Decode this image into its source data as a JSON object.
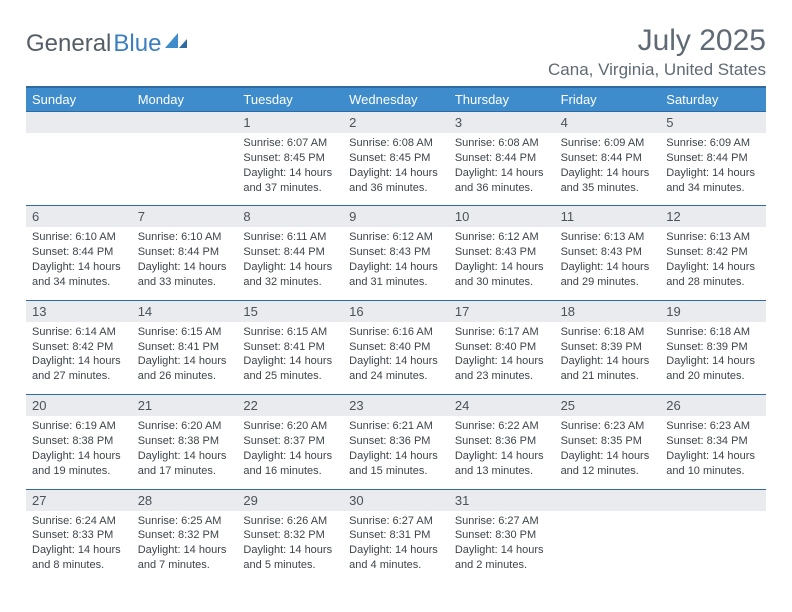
{
  "brand": {
    "part1": "General",
    "part2": "Blue"
  },
  "title": {
    "month": "July 2025",
    "location": "Cana, Virginia, United States"
  },
  "colors": {
    "header_bg": "#3e8ccc",
    "header_text": "#ffffff",
    "rule": "#2f6aa0",
    "daynum_bg": "#e9ebee",
    "text": "#3d444b"
  },
  "dow": [
    "Sunday",
    "Monday",
    "Tuesday",
    "Wednesday",
    "Thursday",
    "Friday",
    "Saturday"
  ],
  "weeks": [
    [
      {
        "n": "",
        "sr": "",
        "ss": "",
        "dl": ""
      },
      {
        "n": "",
        "sr": "",
        "ss": "",
        "dl": ""
      },
      {
        "n": "1",
        "sr": "Sunrise: 6:07 AM",
        "ss": "Sunset: 8:45 PM",
        "dl": "Daylight: 14 hours and 37 minutes."
      },
      {
        "n": "2",
        "sr": "Sunrise: 6:08 AM",
        "ss": "Sunset: 8:45 PM",
        "dl": "Daylight: 14 hours and 36 minutes."
      },
      {
        "n": "3",
        "sr": "Sunrise: 6:08 AM",
        "ss": "Sunset: 8:44 PM",
        "dl": "Daylight: 14 hours and 36 minutes."
      },
      {
        "n": "4",
        "sr": "Sunrise: 6:09 AM",
        "ss": "Sunset: 8:44 PM",
        "dl": "Daylight: 14 hours and 35 minutes."
      },
      {
        "n": "5",
        "sr": "Sunrise: 6:09 AM",
        "ss": "Sunset: 8:44 PM",
        "dl": "Daylight: 14 hours and 34 minutes."
      }
    ],
    [
      {
        "n": "6",
        "sr": "Sunrise: 6:10 AM",
        "ss": "Sunset: 8:44 PM",
        "dl": "Daylight: 14 hours and 34 minutes."
      },
      {
        "n": "7",
        "sr": "Sunrise: 6:10 AM",
        "ss": "Sunset: 8:44 PM",
        "dl": "Daylight: 14 hours and 33 minutes."
      },
      {
        "n": "8",
        "sr": "Sunrise: 6:11 AM",
        "ss": "Sunset: 8:44 PM",
        "dl": "Daylight: 14 hours and 32 minutes."
      },
      {
        "n": "9",
        "sr": "Sunrise: 6:12 AM",
        "ss": "Sunset: 8:43 PM",
        "dl": "Daylight: 14 hours and 31 minutes."
      },
      {
        "n": "10",
        "sr": "Sunrise: 6:12 AM",
        "ss": "Sunset: 8:43 PM",
        "dl": "Daylight: 14 hours and 30 minutes."
      },
      {
        "n": "11",
        "sr": "Sunrise: 6:13 AM",
        "ss": "Sunset: 8:43 PM",
        "dl": "Daylight: 14 hours and 29 minutes."
      },
      {
        "n": "12",
        "sr": "Sunrise: 6:13 AM",
        "ss": "Sunset: 8:42 PM",
        "dl": "Daylight: 14 hours and 28 minutes."
      }
    ],
    [
      {
        "n": "13",
        "sr": "Sunrise: 6:14 AM",
        "ss": "Sunset: 8:42 PM",
        "dl": "Daylight: 14 hours and 27 minutes."
      },
      {
        "n": "14",
        "sr": "Sunrise: 6:15 AM",
        "ss": "Sunset: 8:41 PM",
        "dl": "Daylight: 14 hours and 26 minutes."
      },
      {
        "n": "15",
        "sr": "Sunrise: 6:15 AM",
        "ss": "Sunset: 8:41 PM",
        "dl": "Daylight: 14 hours and 25 minutes."
      },
      {
        "n": "16",
        "sr": "Sunrise: 6:16 AM",
        "ss": "Sunset: 8:40 PM",
        "dl": "Daylight: 14 hours and 24 minutes."
      },
      {
        "n": "17",
        "sr": "Sunrise: 6:17 AM",
        "ss": "Sunset: 8:40 PM",
        "dl": "Daylight: 14 hours and 23 minutes."
      },
      {
        "n": "18",
        "sr": "Sunrise: 6:18 AM",
        "ss": "Sunset: 8:39 PM",
        "dl": "Daylight: 14 hours and 21 minutes."
      },
      {
        "n": "19",
        "sr": "Sunrise: 6:18 AM",
        "ss": "Sunset: 8:39 PM",
        "dl": "Daylight: 14 hours and 20 minutes."
      }
    ],
    [
      {
        "n": "20",
        "sr": "Sunrise: 6:19 AM",
        "ss": "Sunset: 8:38 PM",
        "dl": "Daylight: 14 hours and 19 minutes."
      },
      {
        "n": "21",
        "sr": "Sunrise: 6:20 AM",
        "ss": "Sunset: 8:38 PM",
        "dl": "Daylight: 14 hours and 17 minutes."
      },
      {
        "n": "22",
        "sr": "Sunrise: 6:20 AM",
        "ss": "Sunset: 8:37 PM",
        "dl": "Daylight: 14 hours and 16 minutes."
      },
      {
        "n": "23",
        "sr": "Sunrise: 6:21 AM",
        "ss": "Sunset: 8:36 PM",
        "dl": "Daylight: 14 hours and 15 minutes."
      },
      {
        "n": "24",
        "sr": "Sunrise: 6:22 AM",
        "ss": "Sunset: 8:36 PM",
        "dl": "Daylight: 14 hours and 13 minutes."
      },
      {
        "n": "25",
        "sr": "Sunrise: 6:23 AM",
        "ss": "Sunset: 8:35 PM",
        "dl": "Daylight: 14 hours and 12 minutes."
      },
      {
        "n": "26",
        "sr": "Sunrise: 6:23 AM",
        "ss": "Sunset: 8:34 PM",
        "dl": "Daylight: 14 hours and 10 minutes."
      }
    ],
    [
      {
        "n": "27",
        "sr": "Sunrise: 6:24 AM",
        "ss": "Sunset: 8:33 PM",
        "dl": "Daylight: 14 hours and 8 minutes."
      },
      {
        "n": "28",
        "sr": "Sunrise: 6:25 AM",
        "ss": "Sunset: 8:32 PM",
        "dl": "Daylight: 14 hours and 7 minutes."
      },
      {
        "n": "29",
        "sr": "Sunrise: 6:26 AM",
        "ss": "Sunset: 8:32 PM",
        "dl": "Daylight: 14 hours and 5 minutes."
      },
      {
        "n": "30",
        "sr": "Sunrise: 6:27 AM",
        "ss": "Sunset: 8:31 PM",
        "dl": "Daylight: 14 hours and 4 minutes."
      },
      {
        "n": "31",
        "sr": "Sunrise: 6:27 AM",
        "ss": "Sunset: 8:30 PM",
        "dl": "Daylight: 14 hours and 2 minutes."
      },
      {
        "n": "",
        "sr": "",
        "ss": "",
        "dl": ""
      },
      {
        "n": "",
        "sr": "",
        "ss": "",
        "dl": ""
      }
    ]
  ]
}
